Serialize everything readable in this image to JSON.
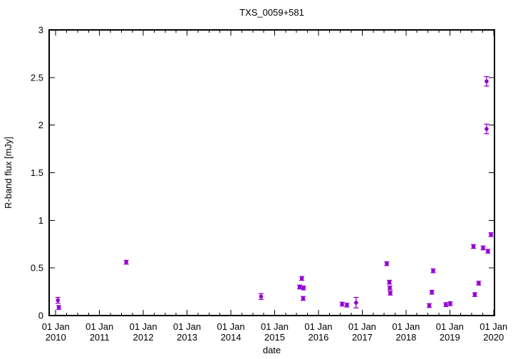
{
  "chart_data": {
    "type": "scatter",
    "title": "TXS_0059+581",
    "xlabel": "date",
    "ylabel": "R-band flux [mJy]",
    "legend": "none",
    "grid": "off",
    "marker": "filled-circle-with-error-bars",
    "marker_color": "#9400d3",
    "axis_color": "#000000",
    "background_color": "#ffffff",
    "xlim": [
      2009.85,
      2020.02
    ],
    "ylim": [
      0,
      3
    ],
    "x_tick_prefix": "01 Jan",
    "x_tick_years": [
      2010,
      2011,
      2012,
      2013,
      2014,
      2015,
      2016,
      2017,
      2018,
      2019,
      2020
    ],
    "x_minor_tick_interval_years": 0.25,
    "y_tick_values": [
      0,
      0.5,
      1,
      1.5,
      2,
      2.5,
      3
    ],
    "y_tick_labels": [
      "0",
      "0.5",
      "1",
      "1.5",
      "2",
      "2.5",
      "3"
    ],
    "series": [
      {
        "name": "R-band flux",
        "points": [
          {
            "date": 2010.05,
            "flux": 0.16,
            "err": 0.03
          },
          {
            "date": 2010.07,
            "flux": 0.085,
            "err": 0.02
          },
          {
            "date": 2011.61,
            "flux": 0.56,
            "err": 0.02
          },
          {
            "date": 2014.69,
            "flux": 0.2,
            "err": 0.03
          },
          {
            "date": 2015.57,
            "flux": 0.3,
            "err": 0.02
          },
          {
            "date": 2015.62,
            "flux": 0.39,
            "err": 0.02
          },
          {
            "date": 2015.65,
            "flux": 0.18,
            "err": 0.02
          },
          {
            "date": 2015.66,
            "flux": 0.29,
            "err": 0.02
          },
          {
            "date": 2016.54,
            "flux": 0.12,
            "err": 0.02
          },
          {
            "date": 2016.65,
            "flux": 0.11,
            "err": 0.02
          },
          {
            "date": 2016.86,
            "flux": 0.135,
            "err": 0.055
          },
          {
            "date": 2017.56,
            "flux": 0.545,
            "err": 0.02
          },
          {
            "date": 2017.62,
            "flux": 0.35,
            "err": 0.02
          },
          {
            "date": 2017.63,
            "flux": 0.29,
            "err": 0.02
          },
          {
            "date": 2017.64,
            "flux": 0.235,
            "err": 0.02
          },
          {
            "date": 2018.53,
            "flux": 0.105,
            "err": 0.02
          },
          {
            "date": 2018.59,
            "flux": 0.245,
            "err": 0.02
          },
          {
            "date": 2018.62,
            "flux": 0.47,
            "err": 0.02
          },
          {
            "date": 2018.91,
            "flux": 0.115,
            "err": 0.02
          },
          {
            "date": 2019.01,
            "flux": 0.125,
            "err": 0.02
          },
          {
            "date": 2019.54,
            "flux": 0.725,
            "err": 0.02
          },
          {
            "date": 2019.57,
            "flux": 0.22,
            "err": 0.02
          },
          {
            "date": 2019.66,
            "flux": 0.34,
            "err": 0.02
          },
          {
            "date": 2019.76,
            "flux": 0.71,
            "err": 0.02
          },
          {
            "date": 2019.84,
            "flux": 1.96,
            "err": 0.05
          },
          {
            "date": 2019.84,
            "flux": 2.46,
            "err": 0.05
          },
          {
            "date": 2019.87,
            "flux": 0.675,
            "err": 0.02
          },
          {
            "date": 2019.94,
            "flux": 0.85,
            "err": 0.02
          }
        ]
      }
    ]
  }
}
